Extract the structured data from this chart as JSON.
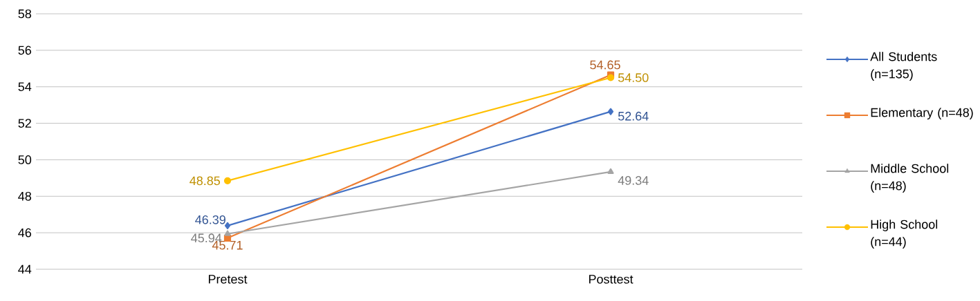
{
  "chart_data": {
    "type": "line",
    "categories": [
      "Pretest",
      "Posttest"
    ],
    "series": [
      {
        "name": "All Students (n=135)",
        "color": "#4472c4",
        "marker": "diamond",
        "values": [
          46.39,
          52.64
        ],
        "value_labels": [
          "46.39",
          "52.64"
        ]
      },
      {
        "name": "Elementary (n=48)",
        "color": "#ed7d31",
        "marker": "square",
        "values": [
          45.71,
          54.65
        ],
        "value_labels": [
          "45.71",
          "54.65"
        ]
      },
      {
        "name": "Middle School (n=48)",
        "color": "#a5a5a5",
        "marker": "triangle",
        "values": [
          45.94,
          49.34
        ],
        "value_labels": [
          "45.94",
          "49.34"
        ]
      },
      {
        "name": "High School (n=44)",
        "color": "#ffc000",
        "marker": "circle",
        "values": [
          48.85,
          54.5
        ],
        "value_labels": [
          "48.85",
          "54.50"
        ]
      }
    ],
    "ylim": [
      44,
      58
    ],
    "yticks": [
      44,
      46,
      48,
      50,
      52,
      54,
      56,
      58
    ],
    "grid": "y",
    "legend": "right"
  }
}
